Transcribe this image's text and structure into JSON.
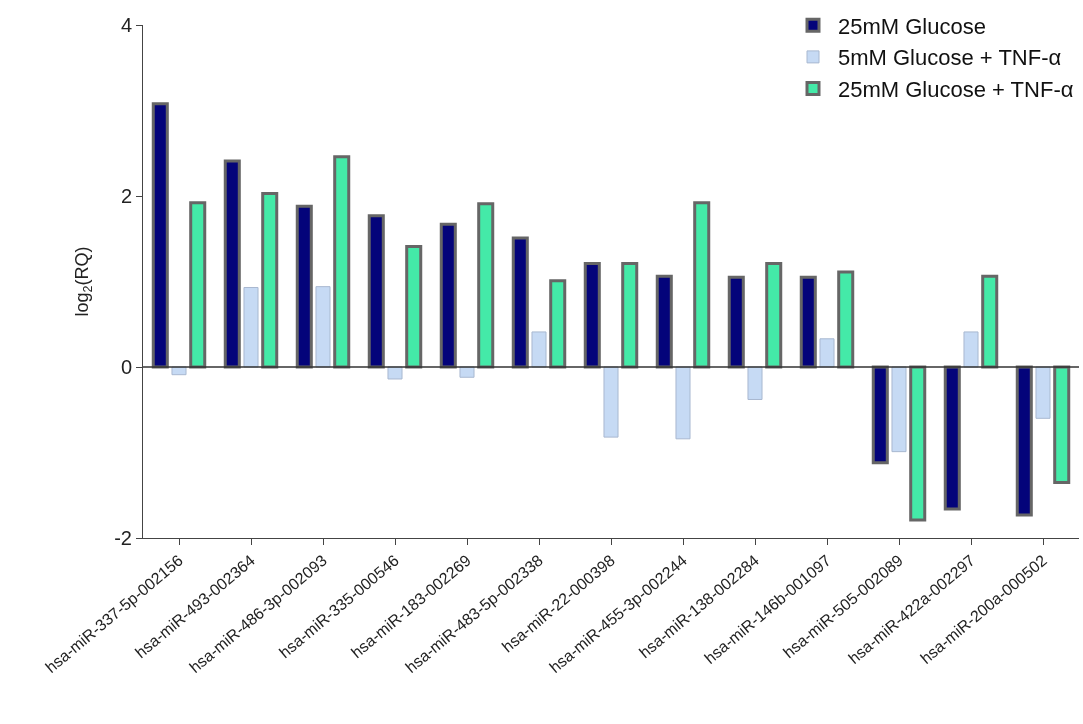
{
  "chart_data": {
    "type": "bar",
    "ylabel": "log$_{2}$(RQ)",
    "categories": [
      "hsa-miR-337-5p-002156",
      "hsa-miR-493-002364",
      "hsa-miR-486-3p-002093",
      "hsa-miR-335-000546",
      "hsa-miR-183-002269",
      "hsa-miR-483-5p-002338",
      "hsa-miR-22-000398",
      "hsa-miR-455-3p-002244",
      "hsa-miR-138-002284",
      "hsa-miR-146b-001097",
      "hsa-miR-505-002089",
      "hsa-miR-422a-002297",
      "hsa-miR-200a-000502"
    ],
    "series": [
      {
        "name": "25mM Glucose",
        "color": "#04047a",
        "values": [
          3.08,
          2.41,
          1.88,
          1.77,
          1.67,
          1.51,
          1.21,
          1.06,
          1.05,
          1.05,
          -1.12,
          -1.66,
          -1.73
        ]
      },
      {
        "name": "5mM Glucose + TNF-α",
        "color": "#c6daf4",
        "values": [
          -0.09,
          0.93,
          0.94,
          -0.14,
          -0.12,
          0.41,
          -0.82,
          -0.84,
          -0.38,
          0.33,
          -0.99,
          0.41,
          -0.6
        ]
      },
      {
        "name": "25mM Glucose + TNF-α",
        "color": "#44eaa8",
        "values": [
          1.92,
          2.03,
          2.46,
          1.41,
          1.91,
          1.01,
          1.21,
          1.92,
          1.21,
          1.11,
          -1.79,
          1.06,
          -1.35
        ]
      }
    ],
    "ylim": [
      -2,
      4
    ],
    "yticks": [
      -2,
      0,
      2,
      4
    ],
    "ref_lines": [
      {
        "axis": "y",
        "value": 0,
        "color": "#333333"
      }
    ],
    "legend": "top right"
  }
}
